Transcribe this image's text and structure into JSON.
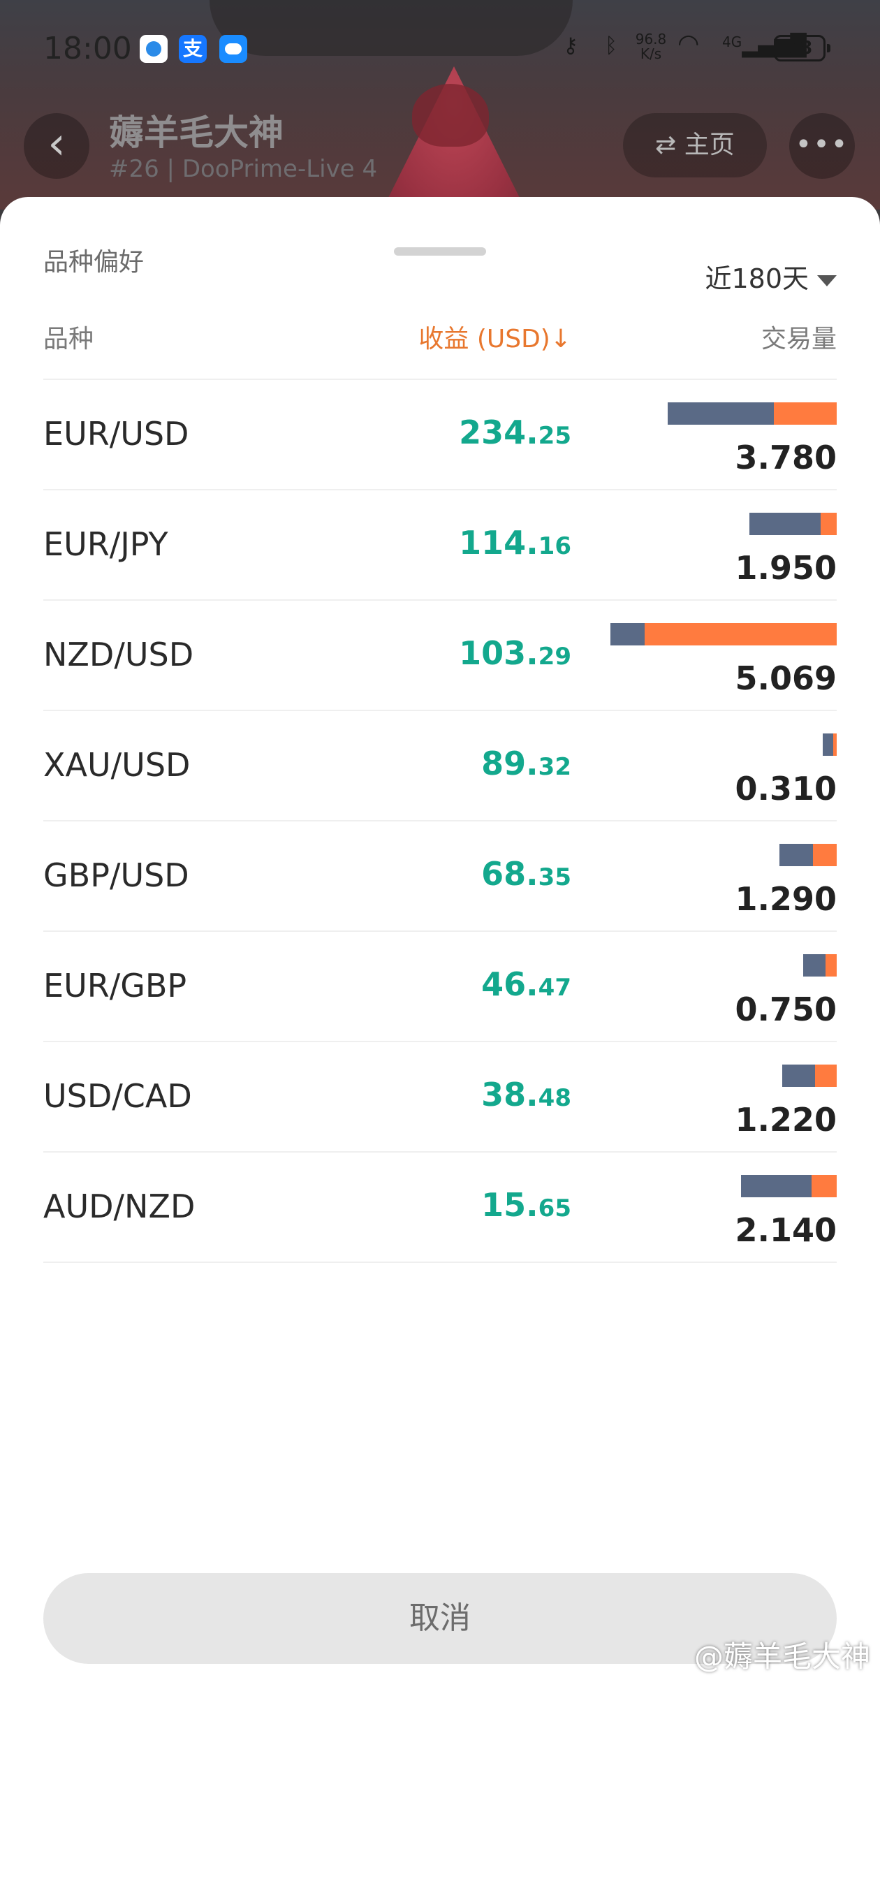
{
  "status_bar": {
    "time": "18:00",
    "speed_value": "96.8",
    "speed_unit": "K/s",
    "network": "4G",
    "battery": "78",
    "icons": [
      "app-icon",
      "alipay-icon",
      "weather-icon",
      "key-icon",
      "bluetooth-icon",
      "wifi-icon",
      "signal-icon",
      "battery-icon"
    ]
  },
  "profile": {
    "name": "薅羊毛大神",
    "subtitle": "#26 | DooPrime-Live 4",
    "home_label": "主页",
    "home_icon": "⇄",
    "back_icon": "‹",
    "more_icon": "•••"
  },
  "sheet": {
    "title": "品种偏好",
    "period": "近180天",
    "col_symbol": "品种",
    "col_pnl": "收益 (USD)↓",
    "col_volume": "交易量",
    "cancel": "取消"
  },
  "colors": {
    "profit": "#13a88d",
    "sort_accent": "#e8772e",
    "bar_buy": "#5a6a86",
    "bar_sell": "#ff7b3f"
  },
  "rows": [
    {
      "symbol": "EUR/USD",
      "pnl_int": "234.",
      "pnl_dec": "25",
      "volume": "3.780",
      "volume_num": 3.78,
      "sell_fraction": 0.37
    },
    {
      "symbol": "EUR/JPY",
      "pnl_int": "114.",
      "pnl_dec": "16",
      "volume": "1.950",
      "volume_num": 1.95,
      "sell_fraction": 0.18
    },
    {
      "symbol": "NZD/USD",
      "pnl_int": "103.",
      "pnl_dec": "29",
      "volume": "5.069",
      "volume_num": 5.069,
      "sell_fraction": 0.85
    },
    {
      "symbol": "XAU/USD",
      "pnl_int": "89.",
      "pnl_dec": "32",
      "volume": "0.310",
      "volume_num": 0.31,
      "sell_fraction": 0.25
    },
    {
      "symbol": "GBP/USD",
      "pnl_int": "68.",
      "pnl_dec": "35",
      "volume": "1.290",
      "volume_num": 1.29,
      "sell_fraction": 0.42
    },
    {
      "symbol": "EUR/GBP",
      "pnl_int": "46.",
      "pnl_dec": "47",
      "volume": "0.750",
      "volume_num": 0.75,
      "sell_fraction": 0.33
    },
    {
      "symbol": "USD/CAD",
      "pnl_int": "38.",
      "pnl_dec": "48",
      "volume": "1.220",
      "volume_num": 1.22,
      "sell_fraction": 0.4
    },
    {
      "symbol": "AUD/NZD",
      "pnl_int": "15.",
      "pnl_dec": "65",
      "volume": "2.140",
      "volume_num": 2.14,
      "sell_fraction": 0.26
    }
  ],
  "watermark": "@薅羊毛大神"
}
